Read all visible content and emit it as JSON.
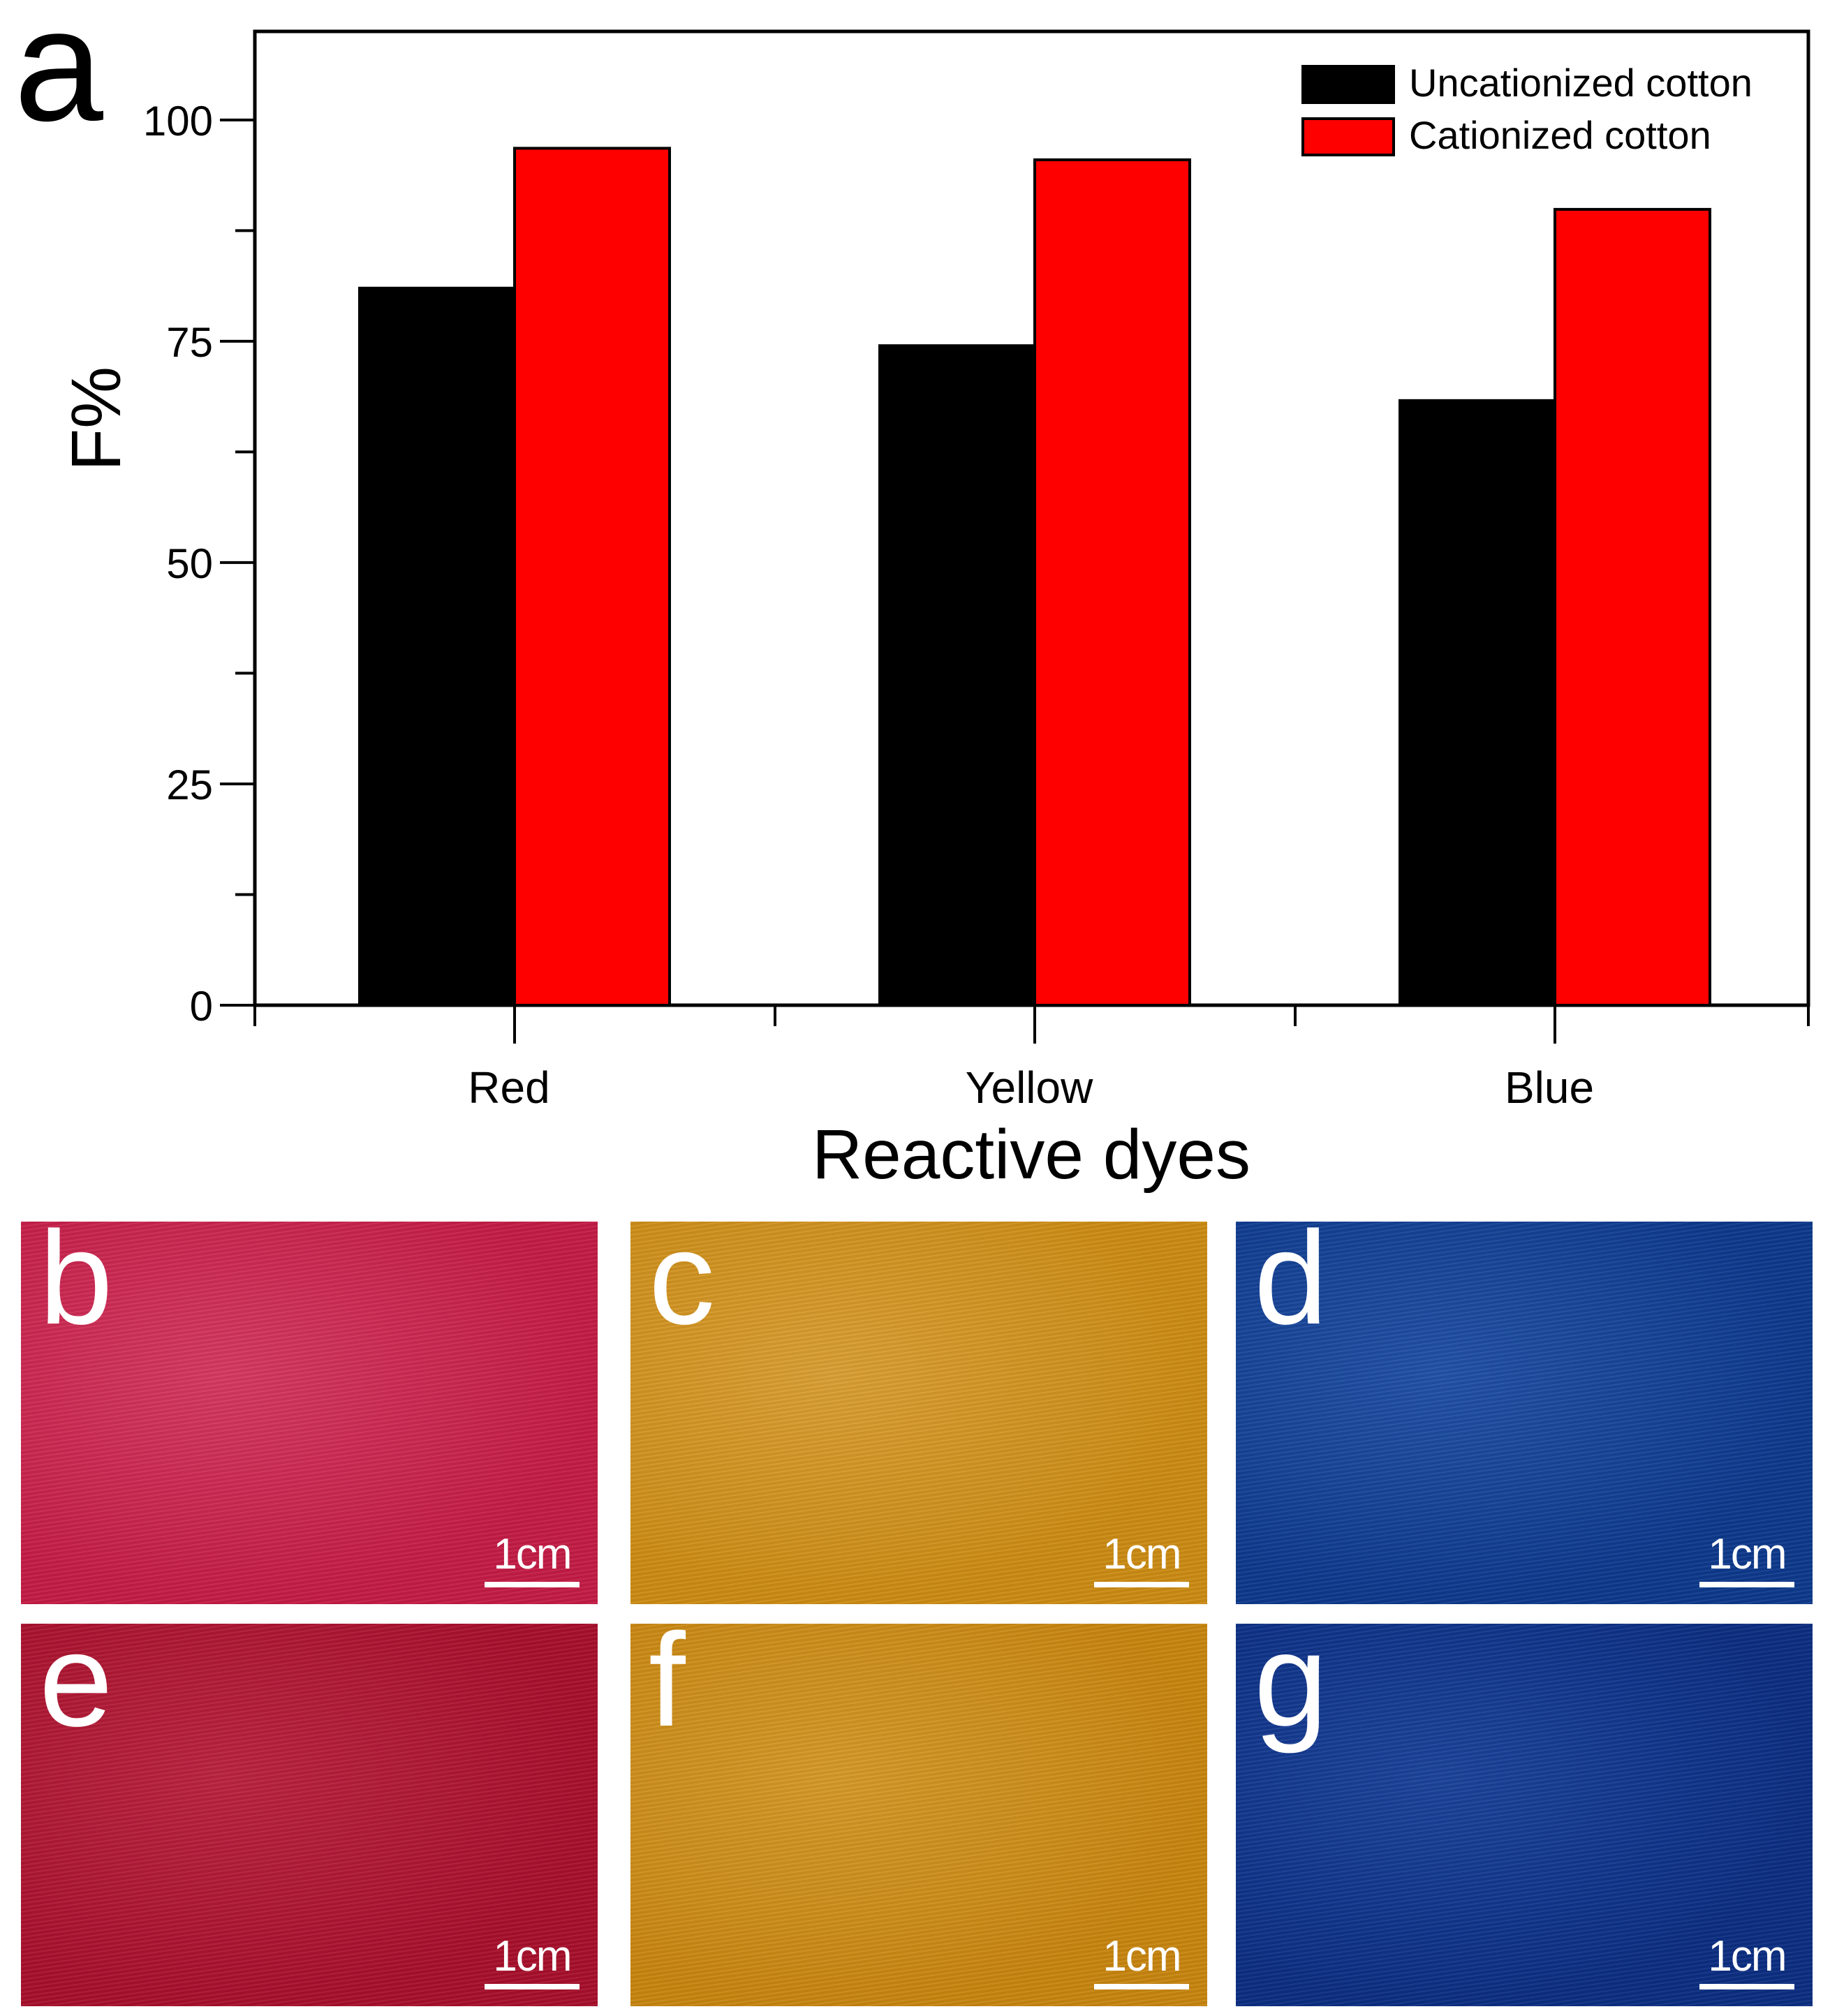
{
  "chart_data": {
    "type": "bar",
    "panel_label": "a",
    "categories": [
      "Red",
      "Yellow",
      "Blue"
    ],
    "series": [
      {
        "name": "Uncationized cotton",
        "color": "#000000",
        "values": [
          81,
          74.5,
          68.3
        ]
      },
      {
        "name": "Cationized cotton",
        "color": "#ff0000",
        "values": [
          96.8,
          95.5,
          89.9
        ]
      }
    ],
    "xlabel": "Reactive dyes",
    "ylabel": "F%",
    "ylim": [
      0,
      110
    ],
    "yticks": [
      0,
      25,
      50,
      75,
      100
    ],
    "yticks_minor": [
      12.5,
      37.5,
      62.5,
      87.5
    ],
    "grid": false,
    "legend_position": "top-right"
  },
  "photos": [
    {
      "label": "b",
      "scale": "1cm",
      "color": "#c41c46",
      "accent": "#d63a62"
    },
    {
      "label": "c",
      "scale": "1cm",
      "color": "#cc8c14",
      "accent": "#dba035"
    },
    {
      "label": "d",
      "scale": "1cm",
      "color": "#0e3a8c",
      "accent": "#2352a8"
    },
    {
      "label": "e",
      "scale": "1cm",
      "color": "#a8102c",
      "accent": "#bb2440"
    },
    {
      "label": "f",
      "scale": "1cm",
      "color": "#c88610",
      "accent": "#d69a2a"
    },
    {
      "label": "g",
      "scale": "1cm",
      "color": "#0c2e82",
      "accent": "#1c449c"
    }
  ]
}
